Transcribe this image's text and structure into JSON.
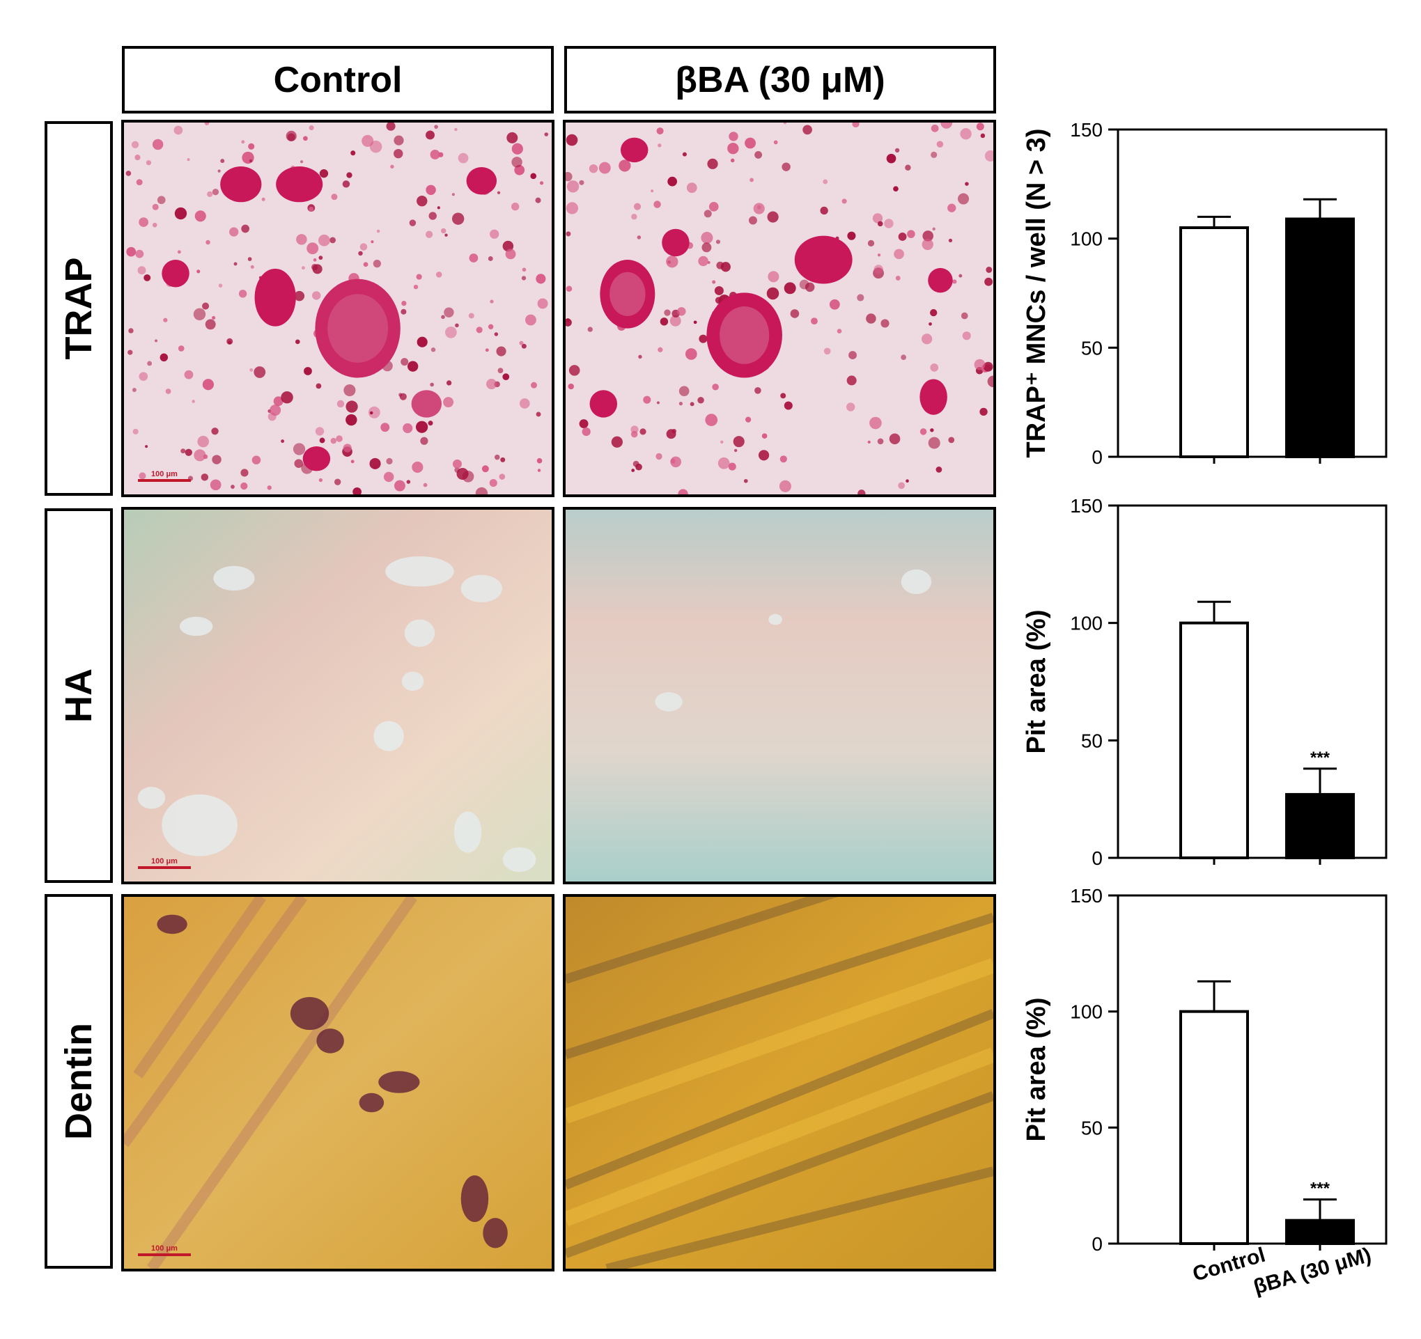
{
  "columns": [
    "Control",
    "βBA (30 μM)"
  ],
  "rows": [
    "TRAP",
    "HA",
    "Dentin"
  ],
  "scale_bar": "100 μm",
  "colors": {
    "control_bar": "#ffffff",
    "treated_bar": "#000000",
    "trap_stain": "#c8185a",
    "dentin_base": "#d9a22e"
  },
  "chart_data": [
    {
      "type": "bar",
      "categories": [
        "Control",
        "βBA (30 μM)"
      ],
      "values": [
        105,
        109
      ],
      "errors": [
        5,
        9
      ],
      "significance": [
        "",
        ""
      ],
      "ylabel": "TRAP⁺ MNCs / well (N > 3)",
      "ylim": [
        0,
        150
      ],
      "yticks": [
        0,
        50,
        100,
        150
      ],
      "show_xlabels": false
    },
    {
      "type": "bar",
      "categories": [
        "Control",
        "βBA (30 μM)"
      ],
      "values": [
        100,
        27
      ],
      "errors": [
        9,
        11
      ],
      "significance": [
        "",
        "***"
      ],
      "ylabel": "Pit area (%)",
      "ylim": [
        0,
        150
      ],
      "yticks": [
        0,
        50,
        100,
        150
      ],
      "show_xlabels": false
    },
    {
      "type": "bar",
      "categories": [
        "Control",
        "βBA (30 μM)"
      ],
      "values": [
        100,
        10
      ],
      "errors": [
        13,
        9
      ],
      "significance": [
        "",
        "***"
      ],
      "ylabel": "Pit area (%)",
      "ylim": [
        0,
        150
      ],
      "yticks": [
        0,
        50,
        100,
        150
      ],
      "show_xlabels": true
    }
  ]
}
